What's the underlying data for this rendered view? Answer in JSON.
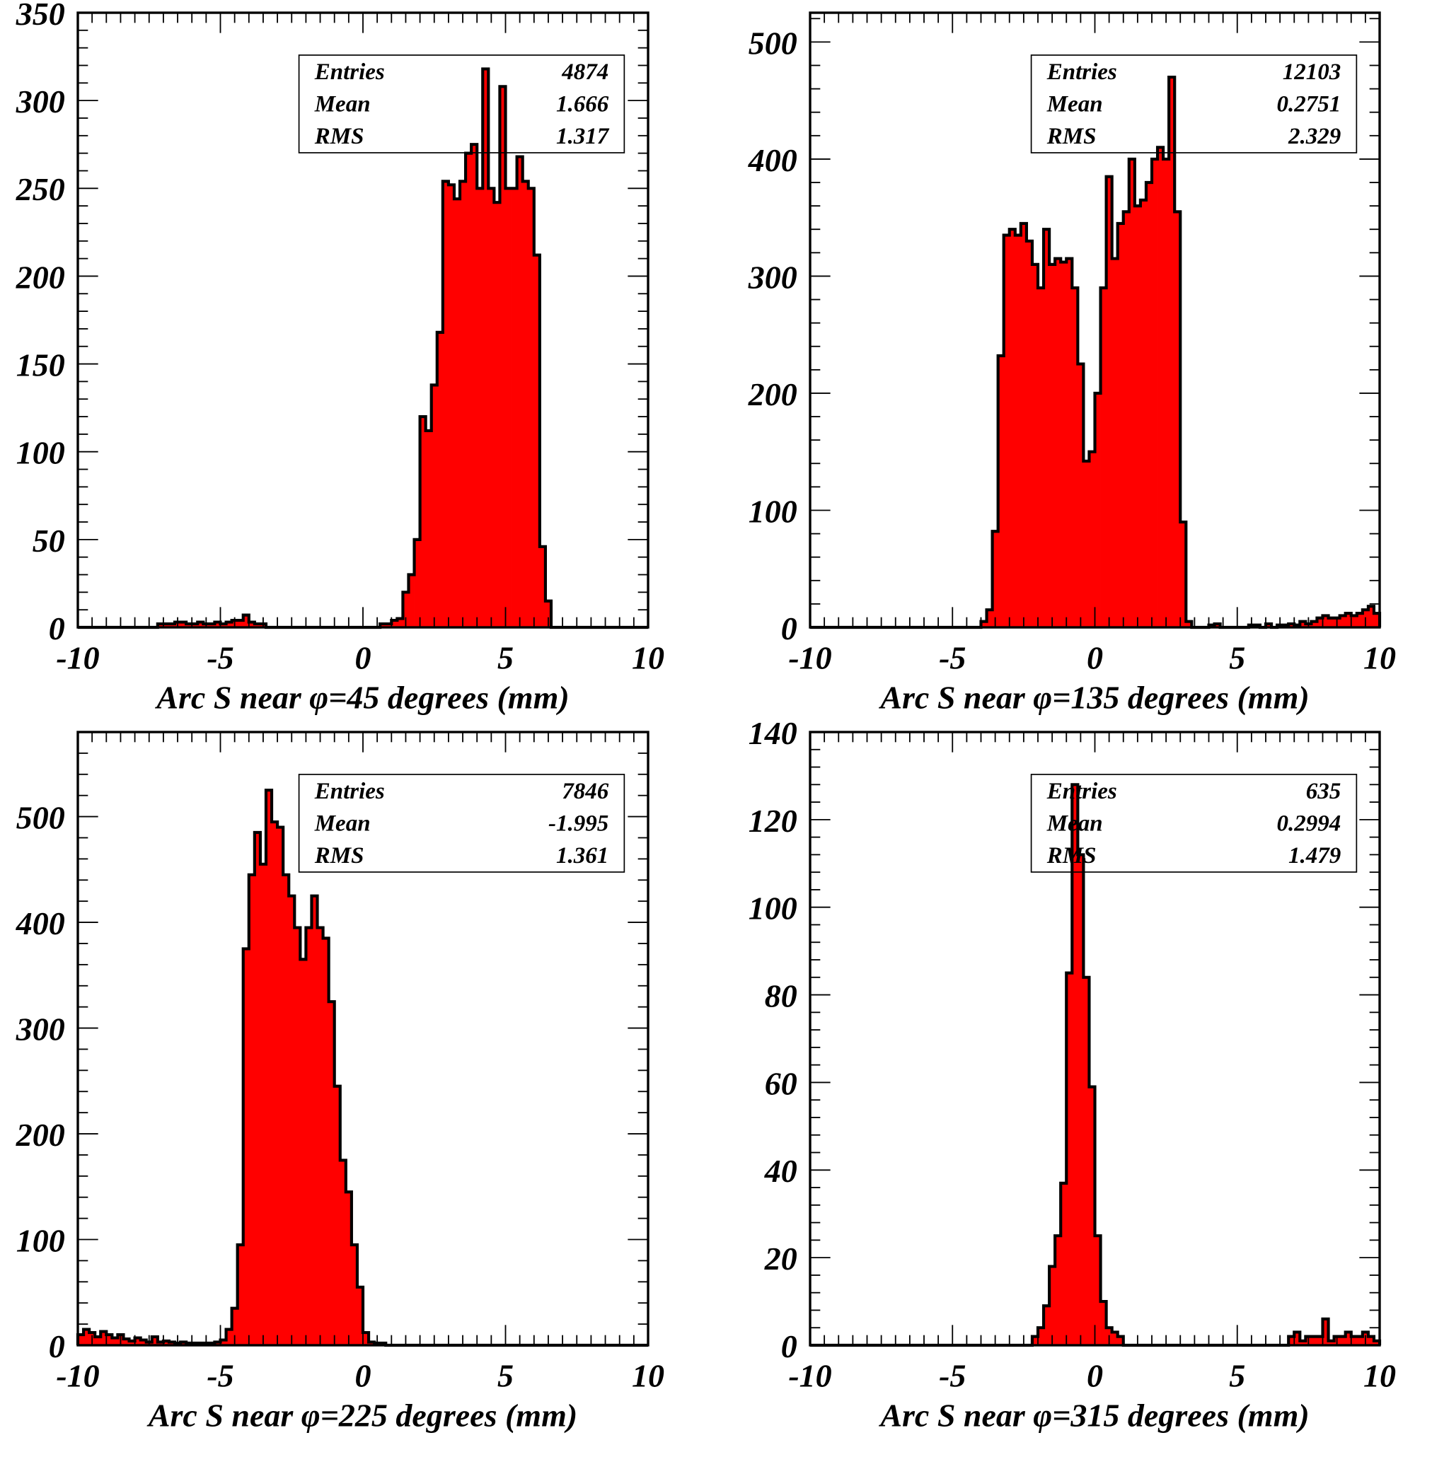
{
  "chart_data": [
    {
      "type": "histogram",
      "xlabel": "Arc S near φ=45 degrees (mm)",
      "xlim": [
        -10,
        10
      ],
      "ylim": [
        0,
        350
      ],
      "x_ticks": [
        "-10",
        "-5",
        "0",
        "5",
        "10"
      ],
      "y_ticks": [
        "0",
        "50",
        "100",
        "150",
        "200",
        "250",
        "300",
        "350"
      ],
      "y_tick_values": [
        0,
        50,
        100,
        150,
        200,
        250,
        300,
        350
      ],
      "bin_start": -10,
      "bin_width": 0.2,
      "counts": [
        0,
        0,
        0,
        0,
        0,
        0,
        0,
        0,
        0,
        0,
        0,
        0,
        0,
        0,
        2,
        2,
        2,
        3,
        3,
        2,
        2,
        3,
        2,
        2,
        3,
        2,
        3,
        4,
        4,
        7,
        3,
        2,
        2,
        0,
        0,
        0,
        0,
        0,
        0,
        0,
        0,
        0,
        0,
        0,
        0,
        0,
        0,
        0,
        0,
        0,
        0,
        0,
        0,
        2,
        2,
        4,
        5,
        20,
        30,
        50,
        120,
        112,
        138,
        168,
        254,
        252,
        244,
        254,
        270,
        275,
        250,
        318,
        250,
        242,
        308,
        250,
        250,
        268,
        254,
        250,
        212,
        46,
        15,
        0,
        0,
        0,
        0,
        0,
        0,
        0,
        0,
        0,
        0,
        0,
        0,
        0,
        0,
        0,
        0,
        0
      ],
      "stats": [
        {
          "label": "Entries",
          "value": "4874"
        },
        {
          "label": "Mean",
          "value": "1.666"
        },
        {
          "label": "RMS",
          "value": "1.317"
        }
      ],
      "fill_color": "#ff0000",
      "line_color": "#000000"
    },
    {
      "type": "histogram",
      "xlabel": "Arc S near φ=135 degrees (mm)",
      "xlim": [
        -10,
        10
      ],
      "ylim": [
        0,
        525
      ],
      "x_ticks": [
        "-10",
        "-5",
        "0",
        "5",
        "10"
      ],
      "y_ticks": [
        "0",
        "100",
        "200",
        "300",
        "400",
        "500"
      ],
      "y_tick_values": [
        0,
        100,
        200,
        300,
        400,
        500
      ],
      "bin_start": -10,
      "bin_width": 0.2,
      "counts": [
        0,
        0,
        0,
        0,
        0,
        0,
        0,
        0,
        0,
        0,
        0,
        0,
        0,
        0,
        0,
        0,
        0,
        0,
        0,
        0,
        0,
        0,
        0,
        0,
        0,
        0,
        0,
        0,
        0,
        0,
        5,
        15,
        82,
        232,
        335,
        340,
        335,
        345,
        330,
        310,
        290,
        340,
        310,
        315,
        312,
        315,
        290,
        225,
        142,
        150,
        200,
        290,
        385,
        315,
        345,
        355,
        400,
        360,
        365,
        380,
        400,
        410,
        400,
        470,
        355,
        90,
        5,
        0,
        0,
        0,
        2,
        3,
        0,
        0,
        0,
        0,
        0,
        2,
        2,
        0,
        3,
        0,
        2,
        2,
        3,
        2,
        5,
        3,
        5,
        8,
        10,
        8,
        8,
        10,
        12,
        10,
        12,
        15,
        18,
        12
      ],
      "stats": [
        {
          "label": "Entries",
          "value": "12103"
        },
        {
          "label": "Mean",
          "value": "0.2751"
        },
        {
          "label": "RMS",
          "value": "2.329"
        }
      ],
      "fill_color": "#ff0000",
      "line_color": "#000000"
    },
    {
      "type": "histogram",
      "xlabel": "Arc S near φ=225 degrees (mm)",
      "xlim": [
        -10,
        10
      ],
      "ylim": [
        0,
        580
      ],
      "x_ticks": [
        "-10",
        "-5",
        "0",
        "5",
        "10"
      ],
      "y_ticks": [
        "0",
        "100",
        "200",
        "300",
        "400",
        "500"
      ],
      "y_tick_values": [
        0,
        100,
        200,
        300,
        400,
        500
      ],
      "bin_start": -10,
      "bin_width": 0.2,
      "counts": [
        10,
        15,
        12,
        8,
        13,
        10,
        7,
        10,
        6,
        4,
        7,
        5,
        3,
        8,
        3,
        4,
        3,
        2,
        3,
        2,
        2,
        2,
        2,
        2,
        3,
        5,
        15,
        35,
        95,
        375,
        445,
        485,
        455,
        525,
        495,
        490,
        445,
        425,
        395,
        365,
        395,
        425,
        395,
        385,
        325,
        245,
        175,
        145,
        95,
        55,
        12,
        3,
        2,
        2,
        0,
        0,
        0,
        0,
        0,
        0,
        0,
        0,
        0,
        0,
        0,
        0,
        0,
        0,
        0,
        0,
        0,
        0,
        0,
        0,
        0,
        0,
        0,
        0,
        0,
        0,
        0,
        0,
        0,
        0,
        0,
        0,
        0,
        0,
        0,
        0,
        0,
        0,
        0,
        0,
        0,
        0,
        0,
        0,
        0,
        0
      ],
      "stats": [
        {
          "label": "Entries",
          "value": "7846"
        },
        {
          "label": "Mean",
          "value": "-1.995"
        },
        {
          "label": "RMS",
          "value": "1.361"
        }
      ],
      "fill_color": "#ff0000",
      "line_color": "#000000"
    },
    {
      "type": "histogram",
      "xlabel": "Arc S near φ=315 degrees (mm)",
      "xlim": [
        -10,
        10
      ],
      "ylim": [
        0,
        140
      ],
      "x_ticks": [
        "-10",
        "-5",
        "0",
        "5",
        "10"
      ],
      "y_ticks": [
        "0",
        "20",
        "40",
        "60",
        "80",
        "100",
        "120",
        "140"
      ],
      "y_tick_values": [
        0,
        20,
        40,
        60,
        80,
        100,
        120,
        140
      ],
      "bin_start": -10,
      "bin_width": 0.2,
      "counts": [
        0,
        0,
        0,
        0,
        0,
        0,
        0,
        0,
        0,
        0,
        0,
        0,
        0,
        0,
        0,
        0,
        0,
        0,
        0,
        0,
        0,
        0,
        0,
        0,
        0,
        0,
        0,
        0,
        0,
        0,
        0,
        0,
        0,
        0,
        0,
        0,
        0,
        0,
        0,
        2,
        4,
        9,
        18,
        25,
        37,
        85,
        128,
        112,
        84,
        59,
        25,
        10,
        4,
        3,
        2,
        0,
        0,
        0,
        0,
        0,
        0,
        0,
        0,
        0,
        0,
        0,
        0,
        0,
        0,
        0,
        0,
        0,
        0,
        0,
        0,
        0,
        0,
        0,
        0,
        0,
        0,
        0,
        0,
        0,
        2,
        3,
        1,
        2,
        2,
        2,
        6,
        1,
        2,
        2,
        3,
        2,
        2,
        3,
        2,
        1
      ],
      "stats": [
        {
          "label": "Entries",
          "value": "635"
        },
        {
          "label": "Mean",
          "value": "0.2994"
        },
        {
          "label": "RMS",
          "value": "1.479"
        }
      ],
      "fill_color": "#ff0000",
      "line_color": "#000000"
    }
  ]
}
